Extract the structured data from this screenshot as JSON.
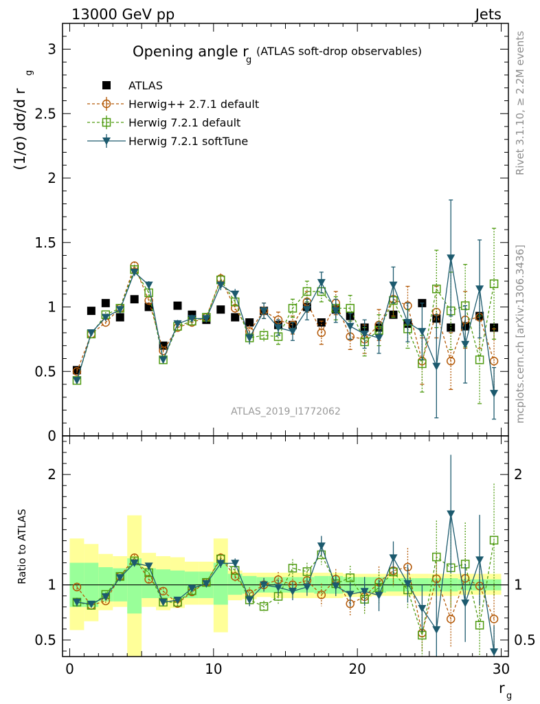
{
  "header": {
    "left": "13000 GeV pp",
    "right": "Jets"
  },
  "side_labels": {
    "rivet": "Rivet 3.1.10, ≥ 2.2M events",
    "mcplots": "mcplots.cern.ch [arXiv:1306.3436]"
  },
  "chart_data": {
    "type": "scatter",
    "title": "Opening angle r",
    "title_sub": "g",
    "title_suffix": "(ATLAS soft-drop observables)",
    "analysis": "ATLAS_2019_I1772062",
    "ylabel_main": "(1/σ) dσ/d r",
    "ylabel_main_sub": "g",
    "ylabel_ratio": "Ratio to ATLAS",
    "xlabel": "r",
    "xlabel_sub": "g",
    "xlim": [
      -0.5,
      30.5
    ],
    "ylim_main": [
      0,
      3.2
    ],
    "ylim_ratio": [
      0.35,
      2.35
    ],
    "x_ticks": [
      "0",
      "10",
      "20",
      "30"
    ],
    "y_ticks_main": [
      "0",
      "0.5",
      "1",
      "1.5",
      "2",
      "2.5",
      "3"
    ],
    "y_ticks_ratio": [
      "0.5",
      "1",
      "2"
    ],
    "x": [
      0.5,
      1.5,
      2.5,
      3.5,
      4.5,
      5.5,
      6.5,
      7.5,
      8.5,
      9.5,
      10.5,
      11.5,
      12.5,
      13.5,
      14.5,
      15.5,
      16.5,
      17.5,
      18.5,
      19.5,
      20.5,
      21.5,
      22.5,
      23.5,
      24.5,
      25.5,
      26.5,
      27.5,
      28.5,
      29.5
    ],
    "series": [
      {
        "name": "ATLAS",
        "color": "#000000",
        "marker": "square",
        "values": [
          0.51,
          0.97,
          1.03,
          0.92,
          1.06,
          1.0,
          0.7,
          1.01,
          0.94,
          0.9,
          0.98,
          0.92,
          0.88,
          0.97,
          0.86,
          0.86,
          1.0,
          0.88,
          0.98,
          0.93,
          0.84,
          0.84,
          0.94,
          0.87,
          1.03,
          0.91,
          0.84,
          0.85,
          0.93,
          0.84
        ],
        "err": [
          0.01,
          0.02,
          0.02,
          0.02,
          0.02,
          0.02,
          0.02,
          0.02,
          0.02,
          0.02,
          0.02,
          0.02,
          0.02,
          0.02,
          0.02,
          0.02,
          0.02,
          0.02,
          0.02,
          0.02,
          0.02,
          0.02,
          0.02,
          0.02,
          0.02,
          0.02,
          0.02,
          0.02,
          0.02,
          0.02
        ]
      },
      {
        "name": "Herwig++ 2.7.1 default",
        "color": "#b35806",
        "marker": "circle",
        "dash": true,
        "values": [
          0.5,
          0.79,
          0.88,
          0.99,
          1.32,
          1.05,
          0.66,
          0.84,
          0.88,
          0.92,
          1.22,
          0.99,
          0.81,
          0.97,
          0.9,
          0.86,
          1.04,
          0.8,
          1.03,
          0.77,
          0.75,
          0.86,
          1.06,
          1.01,
          0.58,
          0.96,
          0.58,
          0.9,
          0.92,
          0.58
        ],
        "err": [
          0.02,
          0.02,
          0.02,
          0.02,
          0.03,
          0.03,
          0.02,
          0.03,
          0.03,
          0.03,
          0.04,
          0.04,
          0.05,
          0.06,
          0.06,
          0.07,
          0.08,
          0.09,
          0.09,
          0.1,
          0.11,
          0.12,
          0.13,
          0.15,
          0.18,
          0.2,
          0.22,
          0.22,
          0.24,
          0.25
        ]
      },
      {
        "name": "Herwig 7.2.1 default",
        "color": "#4d9a0f",
        "marker": "open-square",
        "dash": true,
        "values": [
          0.43,
          0.79,
          0.94,
          0.99,
          1.29,
          1.11,
          0.59,
          0.85,
          0.89,
          0.92,
          1.21,
          1.04,
          0.76,
          0.78,
          0.77,
          0.99,
          1.12,
          1.12,
          0.99,
          0.99,
          0.73,
          0.82,
          1.05,
          0.83,
          0.56,
          1.14,
          0.97,
          1.01,
          0.59,
          1.18
        ],
        "err": [
          0.02,
          0.02,
          0.02,
          0.02,
          0.03,
          0.03,
          0.02,
          0.03,
          0.03,
          0.03,
          0.04,
          0.04,
          0.05,
          0.05,
          0.06,
          0.07,
          0.08,
          0.08,
          0.09,
          0.1,
          0.11,
          0.12,
          0.13,
          0.15,
          0.22,
          0.3,
          0.3,
          0.32,
          0.34,
          0.43
        ]
      },
      {
        "name": "Herwig 7.2.1 softTune",
        "color": "#1c5a6e",
        "marker": "triangle-down",
        "values": [
          0.43,
          0.8,
          0.92,
          0.98,
          1.27,
          1.17,
          0.59,
          0.87,
          0.91,
          0.91,
          1.17,
          1.1,
          0.76,
          0.97,
          0.84,
          0.81,
          0.98,
          1.19,
          0.97,
          0.85,
          0.79,
          0.76,
          1.17,
          0.88,
          0.81,
          0.54,
          1.38,
          0.71,
          1.14,
          0.33
        ],
        "err": [
          0.02,
          0.02,
          0.02,
          0.02,
          0.03,
          0.03,
          0.02,
          0.03,
          0.03,
          0.03,
          0.04,
          0.04,
          0.05,
          0.06,
          0.06,
          0.07,
          0.08,
          0.08,
          0.09,
          0.1,
          0.11,
          0.12,
          0.14,
          0.15,
          0.22,
          0.4,
          0.45,
          0.3,
          0.38,
          0.2
        ]
      }
    ],
    "ratio_band_inner": [
      [
        0.8,
        1.2
      ],
      [
        0.8,
        1.2
      ],
      [
        0.85,
        1.16
      ],
      [
        0.85,
        1.15
      ],
      [
        0.74,
        1.24
      ],
      [
        0.88,
        1.15
      ],
      [
        0.88,
        1.14
      ],
      [
        0.88,
        1.13
      ],
      [
        0.88,
        1.12
      ],
      [
        0.88,
        1.12
      ],
      [
        0.82,
        1.2
      ],
      [
        0.91,
        1.1
      ],
      [
        0.92,
        1.08
      ],
      [
        0.93,
        1.07
      ],
      [
        0.93,
        1.07
      ],
      [
        0.93,
        1.07
      ],
      [
        0.93,
        1.07
      ],
      [
        0.92,
        1.08
      ],
      [
        0.92,
        1.08
      ],
      [
        0.93,
        1.07
      ],
      [
        0.93,
        1.07
      ],
      [
        0.93,
        1.07
      ],
      [
        0.94,
        1.06
      ],
      [
        0.94,
        1.06
      ],
      [
        0.94,
        1.06
      ],
      [
        0.94,
        1.06
      ],
      [
        0.94,
        1.06
      ],
      [
        0.95,
        1.05
      ],
      [
        0.95,
        1.05
      ],
      [
        0.95,
        1.05
      ]
    ],
    "ratio_band_outer": [
      [
        0.59,
        1.42
      ],
      [
        0.67,
        1.37
      ],
      [
        0.77,
        1.28
      ],
      [
        0.8,
        1.26
      ],
      [
        0.3,
        1.63
      ],
      [
        0.8,
        1.29
      ],
      [
        0.77,
        1.26
      ],
      [
        0.79,
        1.25
      ],
      [
        0.82,
        1.21
      ],
      [
        0.82,
        1.21
      ],
      [
        0.57,
        1.42
      ],
      [
        0.86,
        1.13
      ],
      [
        0.87,
        1.11
      ],
      [
        0.89,
        1.11
      ],
      [
        0.88,
        1.11
      ],
      [
        0.88,
        1.11
      ],
      [
        0.88,
        1.11
      ],
      [
        0.88,
        1.11
      ],
      [
        0.88,
        1.11
      ],
      [
        0.89,
        1.1
      ],
      [
        0.89,
        1.1
      ],
      [
        0.9,
        1.1
      ],
      [
        0.9,
        1.1
      ],
      [
        0.9,
        1.1
      ],
      [
        0.9,
        1.1
      ],
      [
        0.9,
        1.1
      ],
      [
        0.9,
        1.1
      ],
      [
        0.91,
        1.1
      ],
      [
        0.91,
        1.1
      ],
      [
        0.91,
        1.1
      ]
    ],
    "band_colors": {
      "inner": "#99ff99",
      "outer": "#ffff99"
    }
  }
}
